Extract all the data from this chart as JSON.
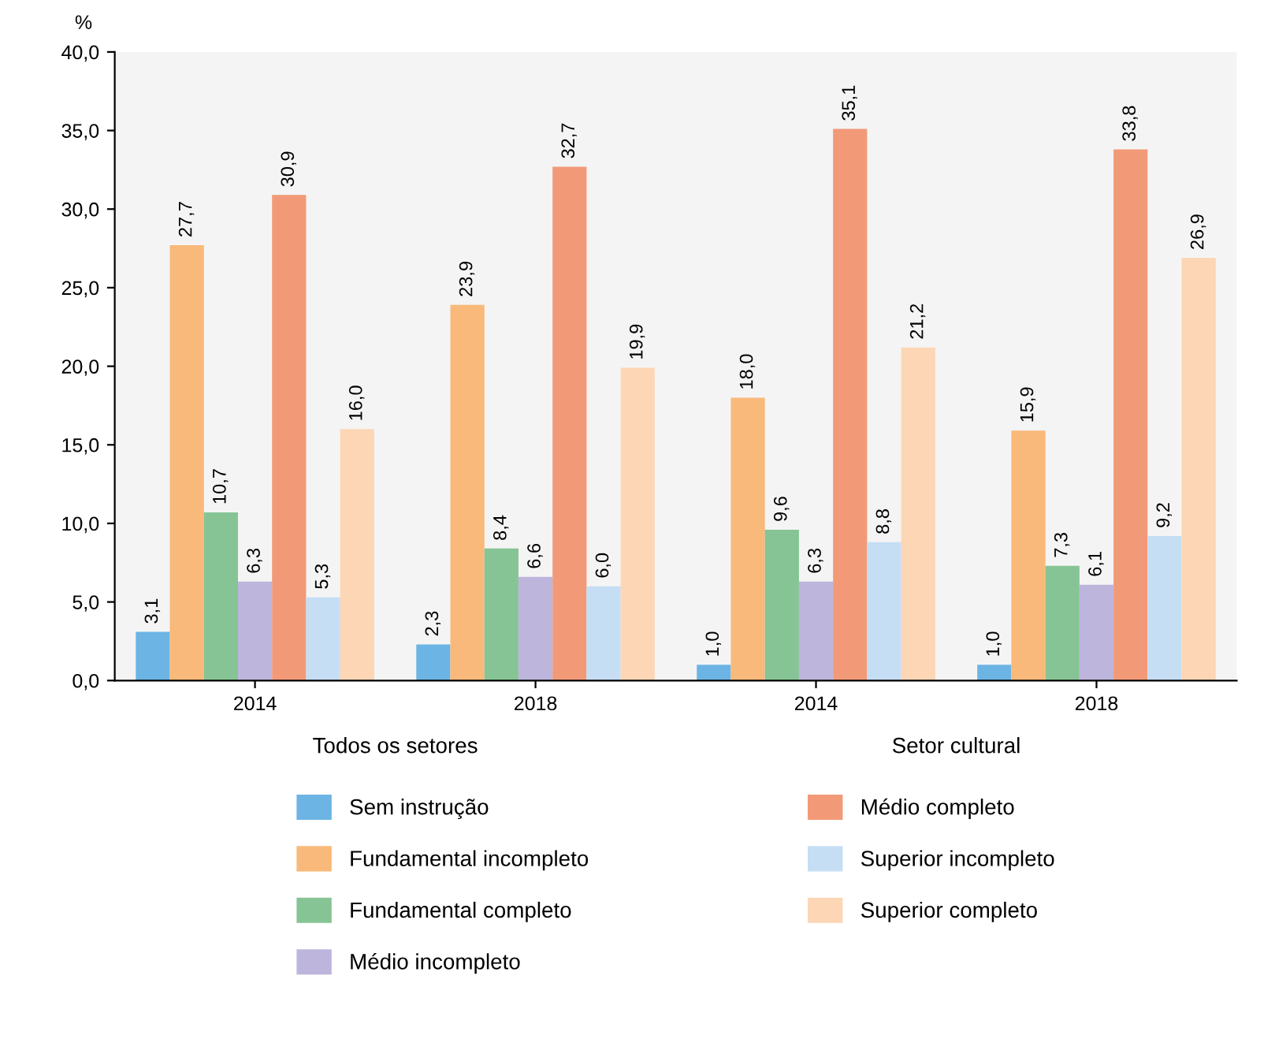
{
  "chart_data": {
    "type": "bar",
    "ylabel": "%",
    "categories": [
      "2014",
      "2018",
      "2014",
      "2018"
    ],
    "annotations": [
      "Todos os setores",
      "Setor cultural"
    ],
    "ylim": [
      0,
      40
    ],
    "yticks": [
      {
        "value": 0,
        "label": "0,0"
      },
      {
        "value": 5,
        "label": "5,0"
      },
      {
        "value": 10,
        "label": "10,0"
      },
      {
        "value": 15,
        "label": "15,0"
      },
      {
        "value": 20,
        "label": "20,0"
      },
      {
        "value": 25,
        "label": "25,0"
      },
      {
        "value": 30,
        "label": "30,0"
      },
      {
        "value": 35,
        "label": "35,0"
      },
      {
        "value": 40,
        "label": "40,0"
      }
    ],
    "grid": false,
    "legend": "bottom",
    "series": [
      {
        "name": "Sem instrução",
        "color": "#6cb4e4",
        "values": [
          3.1,
          2.3,
          1.0,
          1.0
        ],
        "value_labels": [
          "3,1",
          "2,3",
          "1,0",
          "1,0"
        ]
      },
      {
        "name": "Fundamental incompleto",
        "color": "#f9b97a",
        "values": [
          27.7,
          23.9,
          18.0,
          15.9
        ],
        "value_labels": [
          "27,7",
          "23,9",
          "18,0",
          "15,9"
        ]
      },
      {
        "name": "Fundamental completo",
        "color": "#86c495",
        "values": [
          10.7,
          8.4,
          9.6,
          7.3
        ],
        "value_labels": [
          "10,7",
          "8,4",
          "9,6",
          "7,3"
        ]
      },
      {
        "name": "Médio incompleto",
        "color": "#bdb5dc",
        "values": [
          6.3,
          6.6,
          6.3,
          6.1
        ],
        "value_labels": [
          "6,3",
          "6,6",
          "6,3",
          "6,1"
        ]
      },
      {
        "name": "Médio completo",
        "color": "#f29a78",
        "values": [
          30.9,
          32.7,
          35.1,
          33.8
        ],
        "value_labels": [
          "30,9",
          "32,7",
          "35,1",
          "33,8"
        ]
      },
      {
        "name": "Superior incompleto",
        "color": "#c6def4",
        "values": [
          5.3,
          6.0,
          8.8,
          9.2
        ],
        "value_labels": [
          "5,3",
          "6,0",
          "8,8",
          "9,2"
        ]
      },
      {
        "name": "Superior completo",
        "color": "#fcd6b5",
        "values": [
          16.0,
          19.9,
          21.2,
          26.9
        ],
        "value_labels": [
          "16,0",
          "19,9",
          "21,2",
          "26,9"
        ]
      }
    ]
  }
}
